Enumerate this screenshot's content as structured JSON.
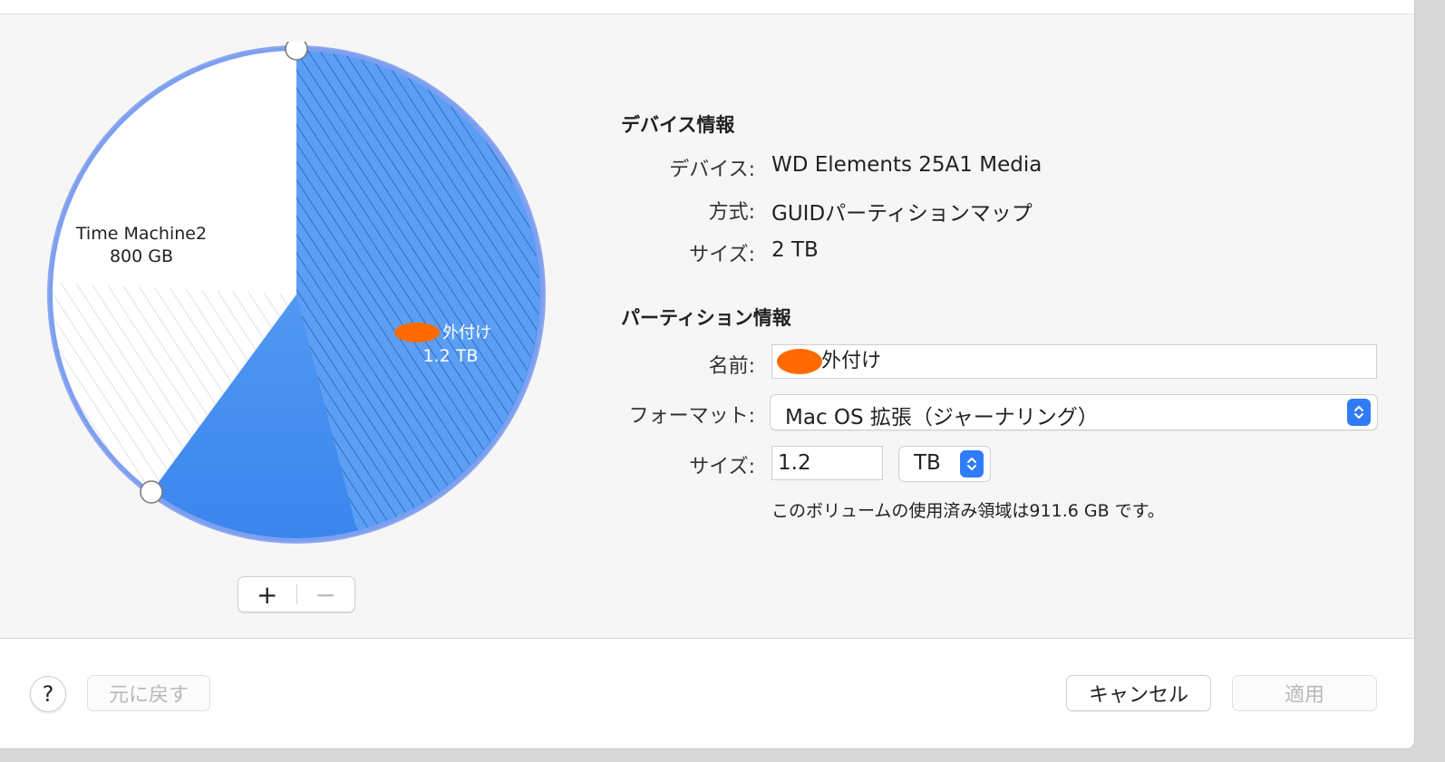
{
  "pie": {
    "total_tb": 2,
    "partitions": [
      {
        "name": "Time Machine2",
        "size": "800 GB",
        "size_gb": 800,
        "used_fraction": 0.55,
        "selected": false
      },
      {
        "name_suffix": "外付け",
        "size": "1.2 TB",
        "size_gb": 1200,
        "used_fraction": 0.76,
        "selected": true
      }
    ],
    "colors": {
      "selected_fill": "#4f95f2",
      "selected_hatch": "#2a5db8",
      "ring": "#8aa8ef",
      "free_fill": "#ffffff",
      "hatch_free": "#d9d9d9",
      "redaction": "#ff6a00"
    }
  },
  "controls": {
    "add": "+",
    "remove": "−"
  },
  "device_info": {
    "title": "デバイス情報",
    "rows": [
      {
        "label": "デバイス:",
        "value": "WD Elements 25A1 Media"
      },
      {
        "label": "方式:",
        "value": "GUIDパーティションマップ"
      },
      {
        "label": "サイズ:",
        "value": "2 TB"
      }
    ]
  },
  "partition_info": {
    "title": "パーティション情報",
    "name_label": "名前:",
    "name_value": "外付け",
    "format_label": "フォーマット:",
    "format_value": "Mac OS 拡張（ジャーナリング）",
    "size_label": "サイズ:",
    "size_value": "1.2",
    "size_unit": "TB",
    "used_note": "このボリュームの使用済み領域は911.6 GB です。"
  },
  "footer": {
    "help": "?",
    "revert": "元に戻す",
    "cancel": "キャンセル",
    "apply": "適用"
  },
  "icons": [
    "pie-handle-icon",
    "chevron-updown-icon",
    "help-icon",
    "plus-icon",
    "minus-icon"
  ]
}
